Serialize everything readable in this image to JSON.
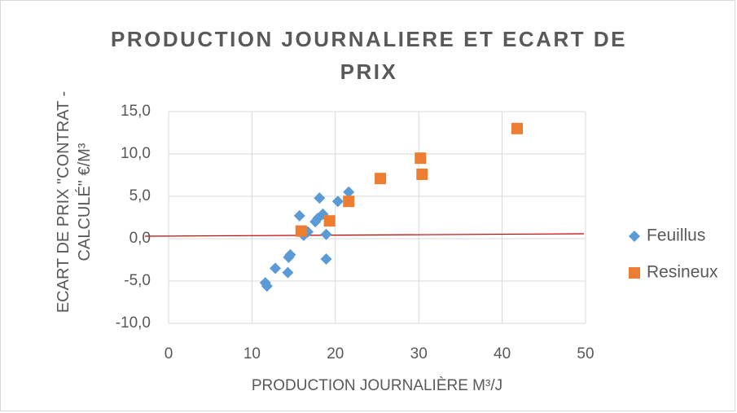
{
  "chart_data": {
    "type": "scatter",
    "title": "PRODUCTION JOURNALIERE ET ECART DE PRIX",
    "xlabel": "PRODUCTION JOURNALIÈRE M³/J",
    "ylabel": "ECART DE PRIX \"CONTRAT - CALCULÉ\" €/M³",
    "xlim": [
      0,
      50
    ],
    "xticks": [
      0,
      10,
      20,
      30,
      40,
      50
    ],
    "ylim": [
      -10,
      15
    ],
    "yticks": [
      {
        "value": -10,
        "label": "-10,0"
      },
      {
        "value": -5,
        "label": "-5,0"
      },
      {
        "value": 0,
        "label": "0,0"
      },
      {
        "value": 5,
        "label": "5,0"
      },
      {
        "value": 10,
        "label": "10,0"
      },
      {
        "value": 15,
        "label": "15,0"
      }
    ],
    "grid": true,
    "legend": "right",
    "series": [
      {
        "name": "Feuillus",
        "color": "#5b9bd5",
        "marker": "diamond",
        "x": [
          11.6,
          11.8,
          12.8,
          14.3,
          14.4,
          14.6,
          15.7,
          16.2,
          16.7,
          17.6,
          17.9,
          18.1,
          18.5,
          18.9,
          18.9,
          20.3,
          21.6
        ],
        "values": [
          -5.2,
          -5.6,
          -3.5,
          -4.0,
          -2.2,
          -1.9,
          2.7,
          0.4,
          0.8,
          2.0,
          2.4,
          4.8,
          2.9,
          0.5,
          -2.4,
          4.4,
          5.5
        ]
      },
      {
        "name": "Resineux",
        "color": "#ed7d31",
        "marker": "square",
        "x": [
          15.9,
          19.3,
          21.6,
          25.4,
          30.2,
          30.4,
          41.8
        ],
        "values": [
          0.9,
          2.1,
          4.4,
          7.1,
          9.5,
          7.6,
          13.0
        ]
      }
    ]
  }
}
